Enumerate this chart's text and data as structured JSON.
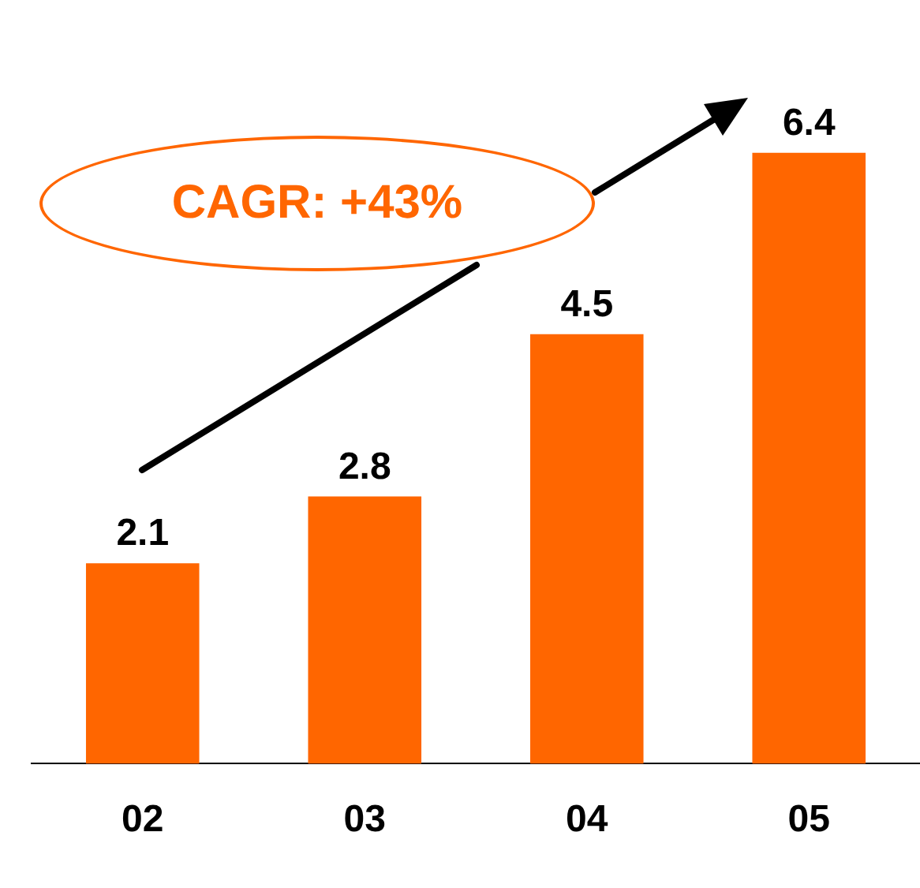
{
  "chart_data": {
    "type": "bar",
    "categories": [
      "02",
      "03",
      "04",
      "05"
    ],
    "values": [
      2.1,
      2.8,
      4.5,
      6.4
    ],
    "color": "#ff6600",
    "data_labels": true,
    "grid": false,
    "legend": false,
    "tick_labels": "x",
    "annotations": [
      "CAGR: +43%"
    ]
  }
}
